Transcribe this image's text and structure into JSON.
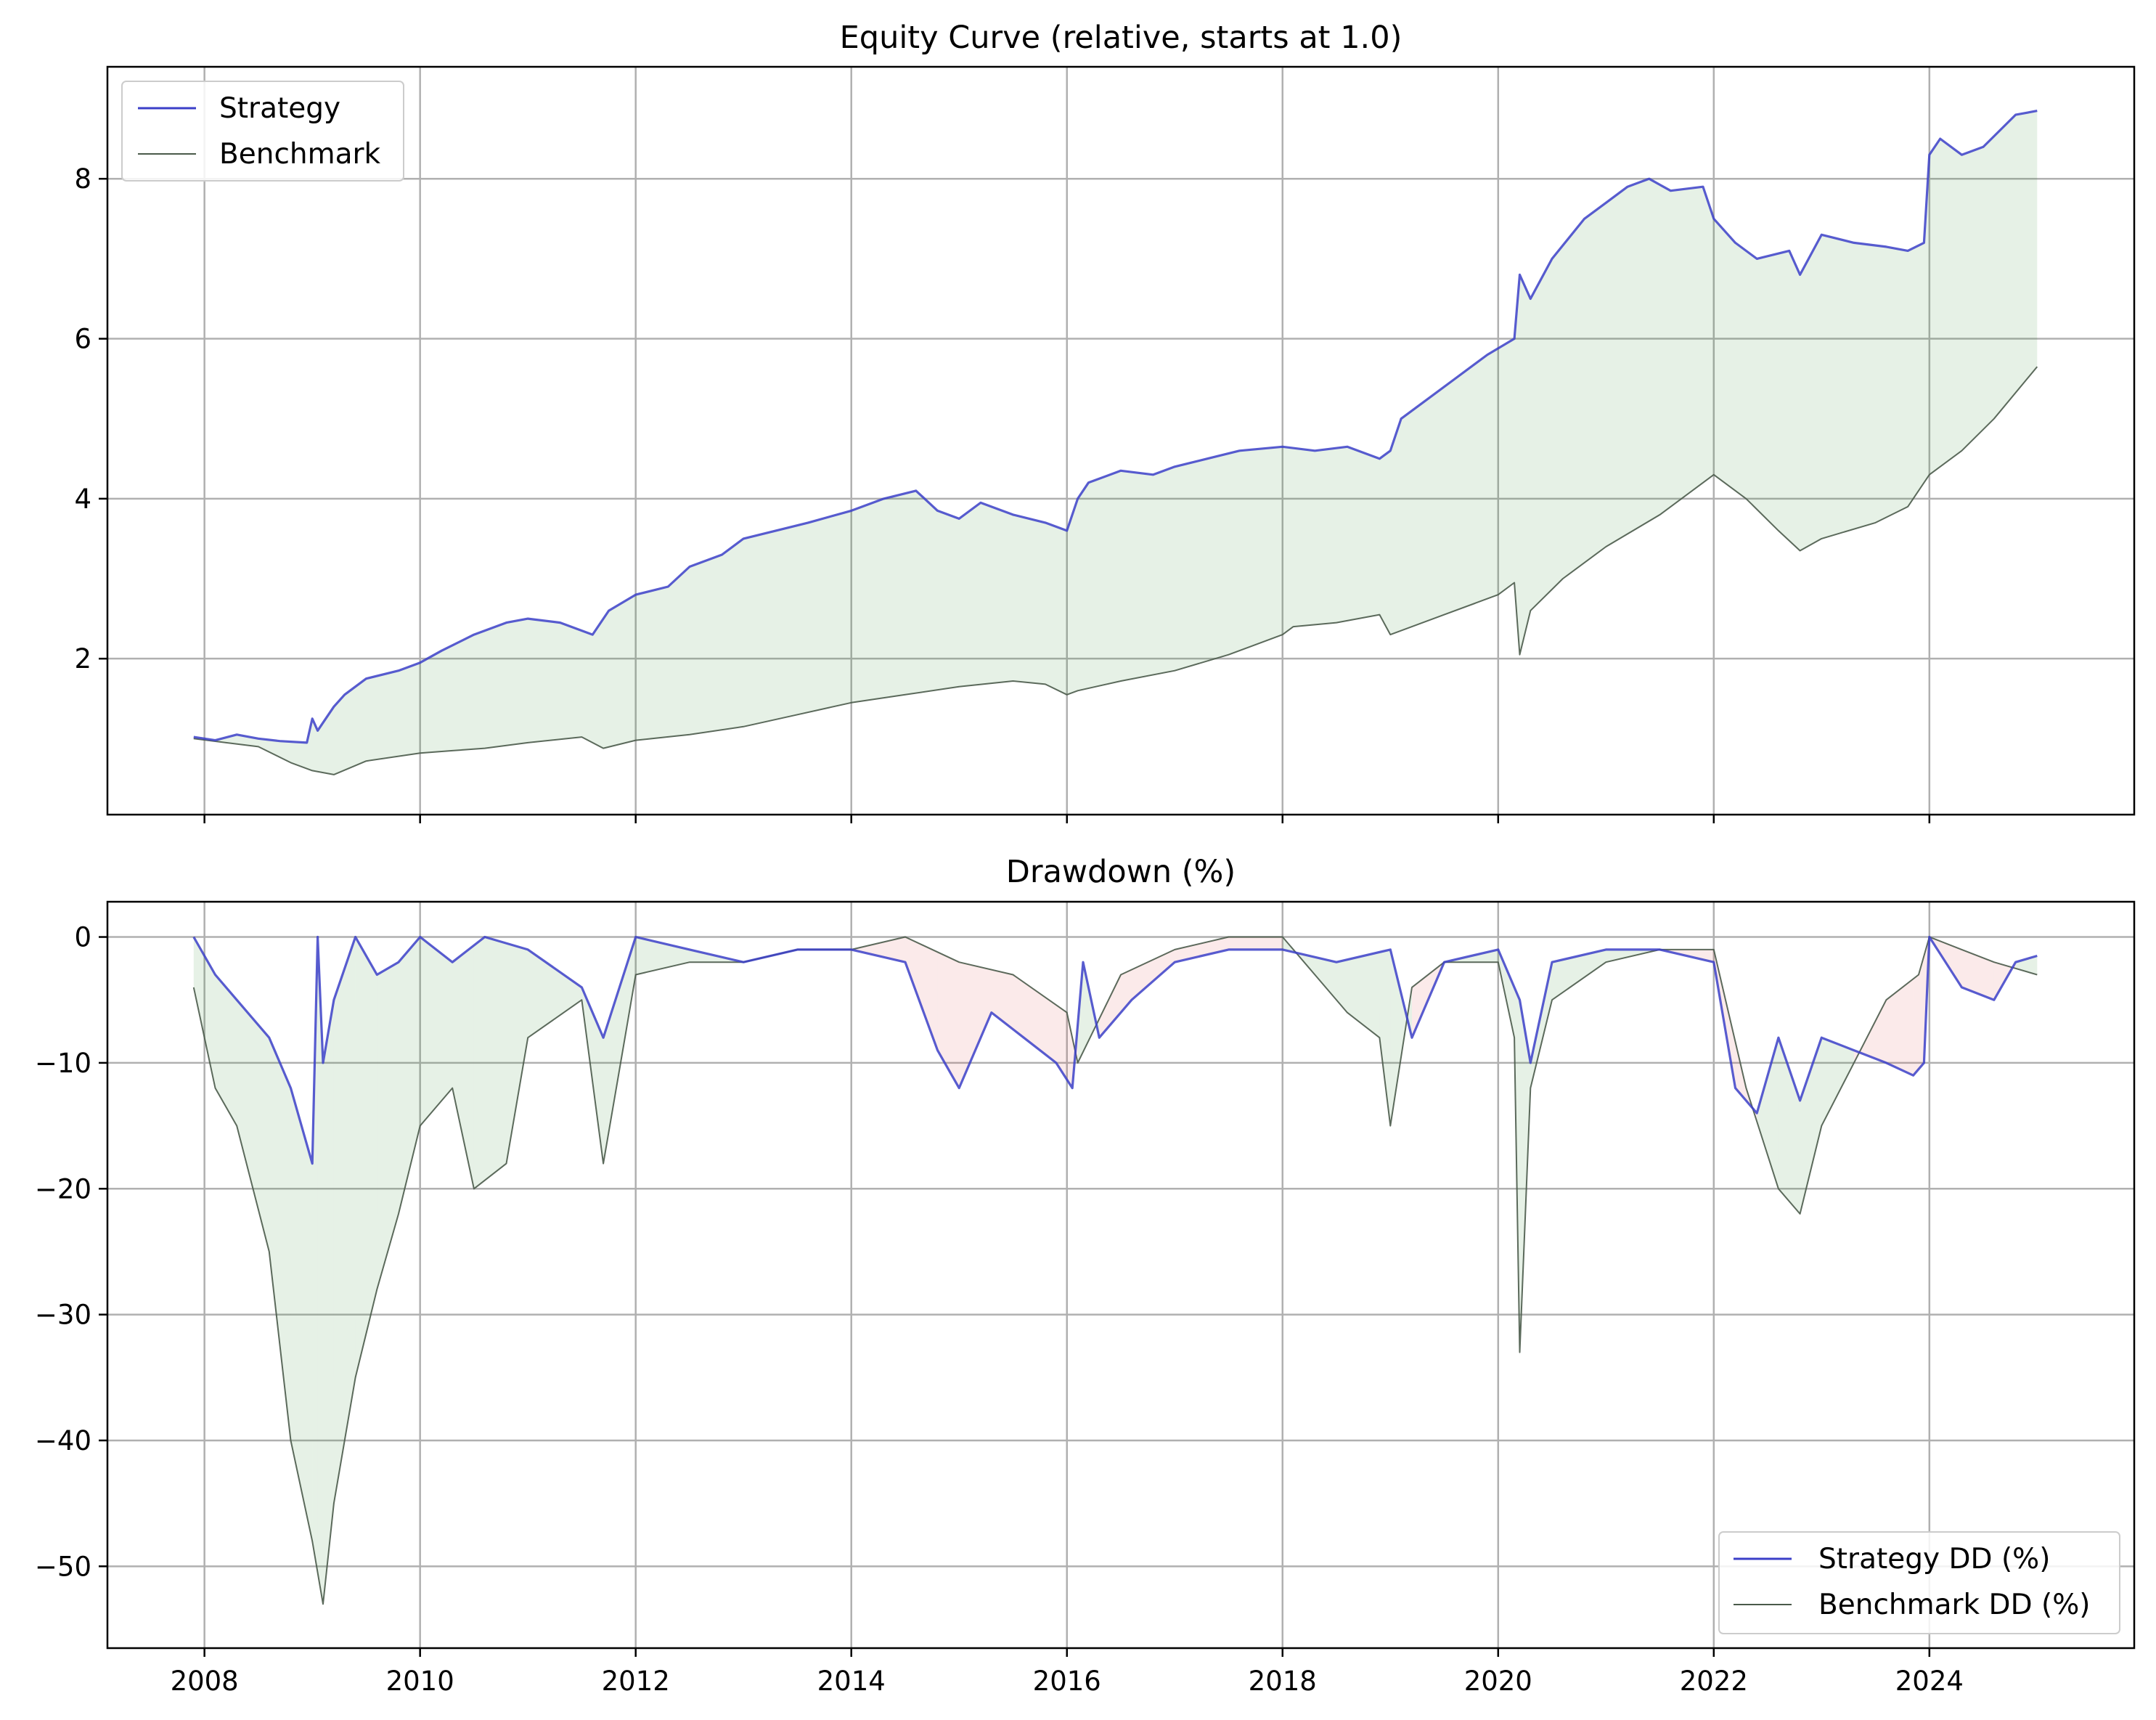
{
  "chart_data": [
    {
      "type": "line",
      "title": "Equity Curve (relative, starts at 1.0)",
      "xlabel": "",
      "ylabel": "",
      "x_ticks": [
        "2008",
        "2010",
        "2012",
        "2014",
        "2016",
        "2018",
        "2020",
        "2022",
        "2024"
      ],
      "y_ticks": [
        2,
        4,
        6,
        8
      ],
      "xlim": [
        2007.1,
        2025.9
      ],
      "ylim": [
        0.05,
        9.4
      ],
      "grid": true,
      "legend_position": "upper-left",
      "fill_between": {
        "color": "#2e8b2e",
        "opacity": 0.12
      },
      "series": [
        {
          "name": "Strategy",
          "color": "#3b3fc8",
          "x": [
            2007.9,
            2008.1,
            2008.3,
            2008.5,
            2008.7,
            2008.95,
            2009.0,
            2009.05,
            2009.1,
            2009.2,
            2009.3,
            2009.5,
            2009.8,
            2010.0,
            2010.2,
            2010.5,
            2010.8,
            2011.0,
            2011.3,
            2011.6,
            2011.75,
            2012.0,
            2012.3,
            2012.5,
            2012.8,
            2013.0,
            2013.3,
            2013.6,
            2014.0,
            2014.3,
            2014.6,
            2014.8,
            2015.0,
            2015.2,
            2015.5,
            2015.8,
            2016.0,
            2016.1,
            2016.2,
            2016.5,
            2016.8,
            2017.0,
            2017.3,
            2017.6,
            2018.0,
            2018.3,
            2018.6,
            2018.9,
            2019.0,
            2019.1,
            2019.3,
            2019.6,
            2019.9,
            2020.15,
            2020.2,
            2020.3,
            2020.5,
            2020.8,
            2021.0,
            2021.2,
            2021.4,
            2021.6,
            2021.9,
            2022.0,
            2022.2,
            2022.4,
            2022.7,
            2022.8,
            2023.0,
            2023.3,
            2023.6,
            2023.8,
            2023.95,
            2024.0,
            2024.1,
            2024.3,
            2024.5,
            2024.8,
            2025.0
          ],
          "values": [
            1.02,
            0.98,
            1.05,
            1.0,
            0.97,
            0.95,
            1.25,
            1.1,
            1.2,
            1.4,
            1.55,
            1.75,
            1.85,
            1.95,
            2.1,
            2.3,
            2.45,
            2.5,
            2.45,
            2.3,
            2.6,
            2.8,
            2.9,
            3.15,
            3.3,
            3.5,
            3.6,
            3.7,
            3.85,
            4.0,
            4.1,
            3.85,
            3.75,
            3.95,
            3.8,
            3.7,
            3.6,
            4.0,
            4.2,
            4.35,
            4.3,
            4.4,
            4.5,
            4.6,
            4.65,
            4.6,
            4.65,
            4.5,
            4.6,
            5.0,
            5.2,
            5.5,
            5.8,
            6.0,
            6.8,
            6.5,
            7.0,
            7.5,
            7.7,
            7.9,
            8.0,
            7.85,
            7.9,
            7.5,
            7.2,
            7.0,
            7.1,
            6.8,
            7.3,
            7.2,
            7.15,
            7.1,
            7.2,
            8.3,
            8.5,
            8.3,
            8.4,
            8.8,
            8.85
          ]
        },
        {
          "name": "Benchmark",
          "color": "#4a5a4a",
          "x": [
            2007.9,
            2008.2,
            2008.5,
            2008.8,
            2009.0,
            2009.2,
            2009.5,
            2010.0,
            2010.3,
            2010.6,
            2011.0,
            2011.5,
            2011.7,
            2012.0,
            2012.5,
            2013.0,
            2013.5,
            2014.0,
            2014.5,
            2015.0,
            2015.5,
            2015.8,
            2016.0,
            2016.1,
            2016.5,
            2017.0,
            2017.5,
            2018.0,
            2018.1,
            2018.5,
            2018.9,
            2019.0,
            2019.5,
            2020.0,
            2020.15,
            2020.2,
            2020.3,
            2020.6,
            2021.0,
            2021.5,
            2022.0,
            2022.3,
            2022.6,
            2022.8,
            2023.0,
            2023.5,
            2023.8,
            2024.0,
            2024.3,
            2024.6,
            2025.0
          ],
          "values": [
            1.0,
            0.95,
            0.9,
            0.7,
            0.6,
            0.55,
            0.72,
            0.82,
            0.85,
            0.88,
            0.95,
            1.02,
            0.88,
            0.98,
            1.05,
            1.15,
            1.3,
            1.45,
            1.55,
            1.65,
            1.72,
            1.68,
            1.55,
            1.6,
            1.72,
            1.85,
            2.05,
            2.3,
            2.4,
            2.45,
            2.55,
            2.3,
            2.55,
            2.8,
            2.95,
            2.05,
            2.6,
            3.0,
            3.4,
            3.8,
            4.3,
            4.0,
            3.6,
            3.35,
            3.5,
            3.7,
            3.9,
            4.3,
            4.6,
            5.0,
            5.65
          ]
        }
      ]
    },
    {
      "type": "line",
      "title": "Drawdown (%)",
      "xlabel": "",
      "ylabel": "",
      "x_ticks": [
        "2008",
        "2010",
        "2012",
        "2014",
        "2016",
        "2018",
        "2020",
        "2022",
        "2024"
      ],
      "y_ticks": [
        0,
        -10,
        -20,
        -30,
        -40,
        -50
      ],
      "xlim": [
        2007.1,
        2025.9
      ],
      "ylim": [
        -56.5,
        2.8
      ],
      "grid": true,
      "legend_position": "lower-right",
      "fill_colors": {
        "strategy_better": "#2e8b2e",
        "benchmark_better": "#e05050"
      },
      "series": [
        {
          "name": "Strategy DD (%)",
          "color": "#3b3fc8",
          "x": [
            2007.9,
            2008.1,
            2008.3,
            2008.6,
            2008.8,
            2009.0,
            2009.05,
            2009.1,
            2009.2,
            2009.4,
            2009.6,
            2009.8,
            2010.0,
            2010.3,
            2010.6,
            2011.0,
            2011.5,
            2011.7,
            2012.0,
            2012.5,
            2013.0,
            2013.5,
            2014.0,
            2014.5,
            2014.8,
            2015.0,
            2015.3,
            2015.6,
            2015.9,
            2016.05,
            2016.15,
            2016.3,
            2016.6,
            2017.0,
            2017.5,
            2018.0,
            2018.5,
            2019.0,
            2019.2,
            2019.5,
            2020.0,
            2020.2,
            2020.3,
            2020.5,
            2021.0,
            2021.5,
            2022.0,
            2022.2,
            2022.4,
            2022.6,
            2022.8,
            2023.0,
            2023.3,
            2023.6,
            2023.85,
            2023.95,
            2024.0,
            2024.3,
            2024.6,
            2024.8,
            2025.0
          ],
          "values": [
            0,
            -3,
            -5,
            -8,
            -12,
            -18,
            0,
            -10,
            -5,
            0,
            -3,
            -2,
            0,
            -2,
            0,
            -1,
            -4,
            -8,
            0,
            -1,
            -2,
            -1,
            -1,
            -2,
            -9,
            -12,
            -6,
            -8,
            -10,
            -12,
            -2,
            -8,
            -5,
            -2,
            -1,
            -1,
            -2,
            -1,
            -8,
            -2,
            -1,
            -5,
            -10,
            -2,
            -1,
            -1,
            -2,
            -12,
            -14,
            -8,
            -13,
            -8,
            -9,
            -10,
            -11,
            -10,
            0,
            -4,
            -5,
            -2,
            -1.5
          ]
        },
        {
          "name": "Benchmark DD (%)",
          "color": "#4a5a4a",
          "x": [
            2007.9,
            2008.1,
            2008.3,
            2008.6,
            2008.8,
            2009.0,
            2009.1,
            2009.2,
            2009.4,
            2009.6,
            2009.8,
            2010.0,
            2010.3,
            2010.5,
            2010.8,
            2011.0,
            2011.5,
            2011.7,
            2011.9,
            2012.0,
            2012.5,
            2013.0,
            2013.5,
            2014.0,
            2014.5,
            2015.0,
            2015.5,
            2016.0,
            2016.1,
            2016.5,
            2017.0,
            2017.5,
            2018.0,
            2018.3,
            2018.6,
            2018.9,
            2019.0,
            2019.2,
            2019.5,
            2020.0,
            2020.15,
            2020.2,
            2020.3,
            2020.5,
            2021.0,
            2021.5,
            2022.0,
            2022.3,
            2022.6,
            2022.8,
            2023.0,
            2023.3,
            2023.6,
            2023.9,
            2024.0,
            2024.3,
            2024.6,
            2025.0
          ],
          "values": [
            -4,
            -12,
            -15,
            -25,
            -40,
            -48,
            -53,
            -45,
            -35,
            -28,
            -22,
            -15,
            -12,
            -20,
            -18,
            -8,
            -5,
            -18,
            -8,
            -3,
            -2,
            -2,
            -1,
            -1,
            0,
            -2,
            -3,
            -6,
            -10,
            -3,
            -1,
            0,
            0,
            -3,
            -6,
            -8,
            -15,
            -4,
            -2,
            -2,
            -8,
            -33,
            -12,
            -5,
            -2,
            -1,
            -1,
            -12,
            -20,
            -22,
            -15,
            -10,
            -5,
            -3,
            0,
            -1,
            -2,
            -3
          ]
        }
      ]
    }
  ]
}
